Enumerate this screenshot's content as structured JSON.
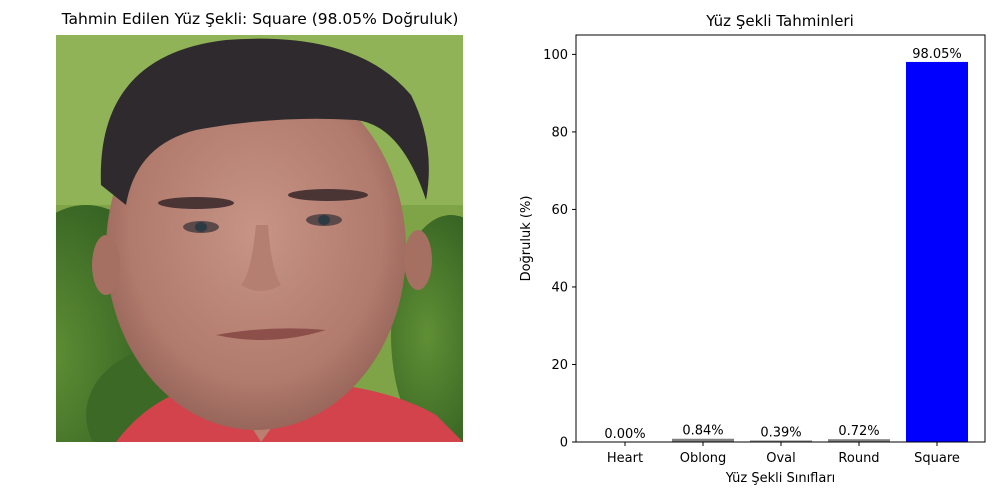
{
  "figure": {
    "left_title": "Tahmin Edilen Yüz Şekli: Square (98.05% Doğruluk)"
  },
  "photo": {
    "subject": "face-photo",
    "colors": {
      "background_green": "#6f9a3a",
      "skin": "#b98477",
      "hair": "#2f2a2d",
      "shirt": "#d2434c"
    }
  },
  "chart_data": {
    "type": "bar",
    "title": "Yüz Şekli Tahminleri",
    "xlabel": "Yüz Şekli Sınıfları",
    "ylabel": "Doğruluk (%)",
    "categories": [
      "Heart",
      "Oblong",
      "Oval",
      "Round",
      "Square"
    ],
    "values": [
      0.0,
      0.84,
      0.39,
      0.72,
      98.05
    ],
    "data_labels": [
      "0.00%",
      "0.84%",
      "0.39%",
      "0.72%",
      "98.05%"
    ],
    "colors": [
      "#808080",
      "#808080",
      "#808080",
      "#808080",
      "#0000ff"
    ],
    "ylim": [
      0,
      105
    ],
    "yticks": [
      0,
      20,
      40,
      60,
      80,
      100
    ],
    "grid": false,
    "legend": "none"
  }
}
